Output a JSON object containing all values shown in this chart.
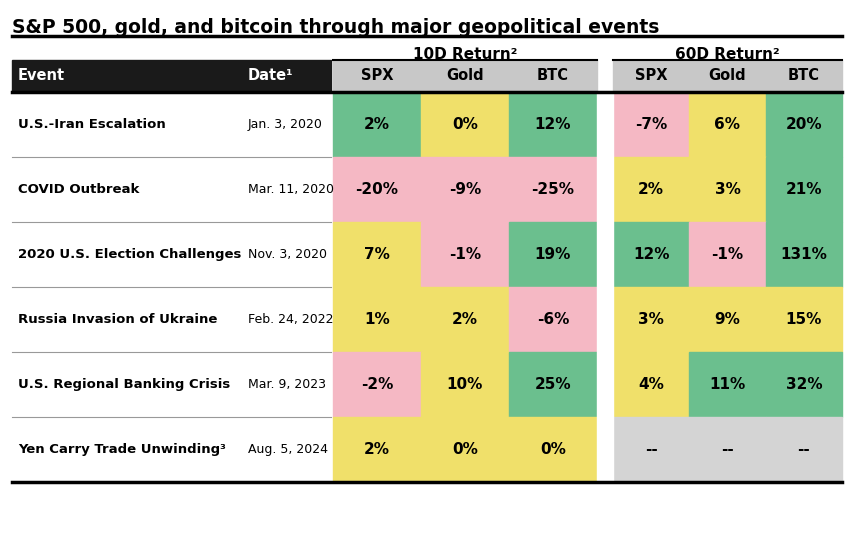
{
  "title": "S&P 500, gold, and bitcoin through major geopolitical events",
  "col_group1": "10D Return²",
  "col_group2": "60D Return²",
  "events": [
    {
      "event": "U.S.-Iran Escalation",
      "date": "Jan. 3, 2020",
      "d10": [
        "2%",
        "0%",
        "12%"
      ],
      "d60": [
        "-7%",
        "6%",
        "20%"
      ]
    },
    {
      "event": "COVID Outbreak",
      "date": "Mar. 11, 2020",
      "d10": [
        "-20%",
        "-9%",
        "-25%"
      ],
      "d60": [
        "2%",
        "3%",
        "21%"
      ]
    },
    {
      "event": "2020 U.S. Election Challenges",
      "date": "Nov. 3, 2020",
      "d10": [
        "7%",
        "-1%",
        "19%"
      ],
      "d60": [
        "12%",
        "-1%",
        "131%"
      ]
    },
    {
      "event": "Russia Invasion of Ukraine",
      "date": "Feb. 24, 2022",
      "d10": [
        "1%",
        "2%",
        "-6%"
      ],
      "d60": [
        "3%",
        "9%",
        "15%"
      ]
    },
    {
      "event": "U.S. Regional Banking Crisis",
      "date": "Mar. 9, 2023",
      "d10": [
        "-2%",
        "10%",
        "25%"
      ],
      "d60": [
        "4%",
        "11%",
        "32%"
      ]
    },
    {
      "event": "Yen Carry Trade Unwinding³",
      "date": "Aug. 5, 2024",
      "d10": [
        "2%",
        "0%",
        "0%"
      ],
      "d60": [
        "--",
        "--",
        "--"
      ]
    }
  ],
  "colors": {
    "green": "#6bbf8e",
    "yellow": "#f0e06a",
    "pink": "#f5b8c4",
    "gray": "#d4d4d4",
    "header_gray": "#c8c8c8",
    "black_hdr": "#1a1a1a",
    "white": "#ffffff",
    "bg": "#ffffff"
  },
  "cell_colors_10d": [
    [
      "green",
      "yellow",
      "green"
    ],
    [
      "pink",
      "pink",
      "pink"
    ],
    [
      "yellow",
      "pink",
      "green"
    ],
    [
      "yellow",
      "yellow",
      "pink"
    ],
    [
      "pink",
      "yellow",
      "green"
    ],
    [
      "yellow",
      "yellow",
      "yellow"
    ]
  ],
  "cell_colors_60d": [
    [
      "pink",
      "yellow",
      "green"
    ],
    [
      "yellow",
      "yellow",
      "green"
    ],
    [
      "green",
      "pink",
      "green"
    ],
    [
      "yellow",
      "yellow",
      "yellow"
    ],
    [
      "yellow",
      "green",
      "green"
    ],
    [
      "gray",
      "gray",
      "gray"
    ]
  ]
}
